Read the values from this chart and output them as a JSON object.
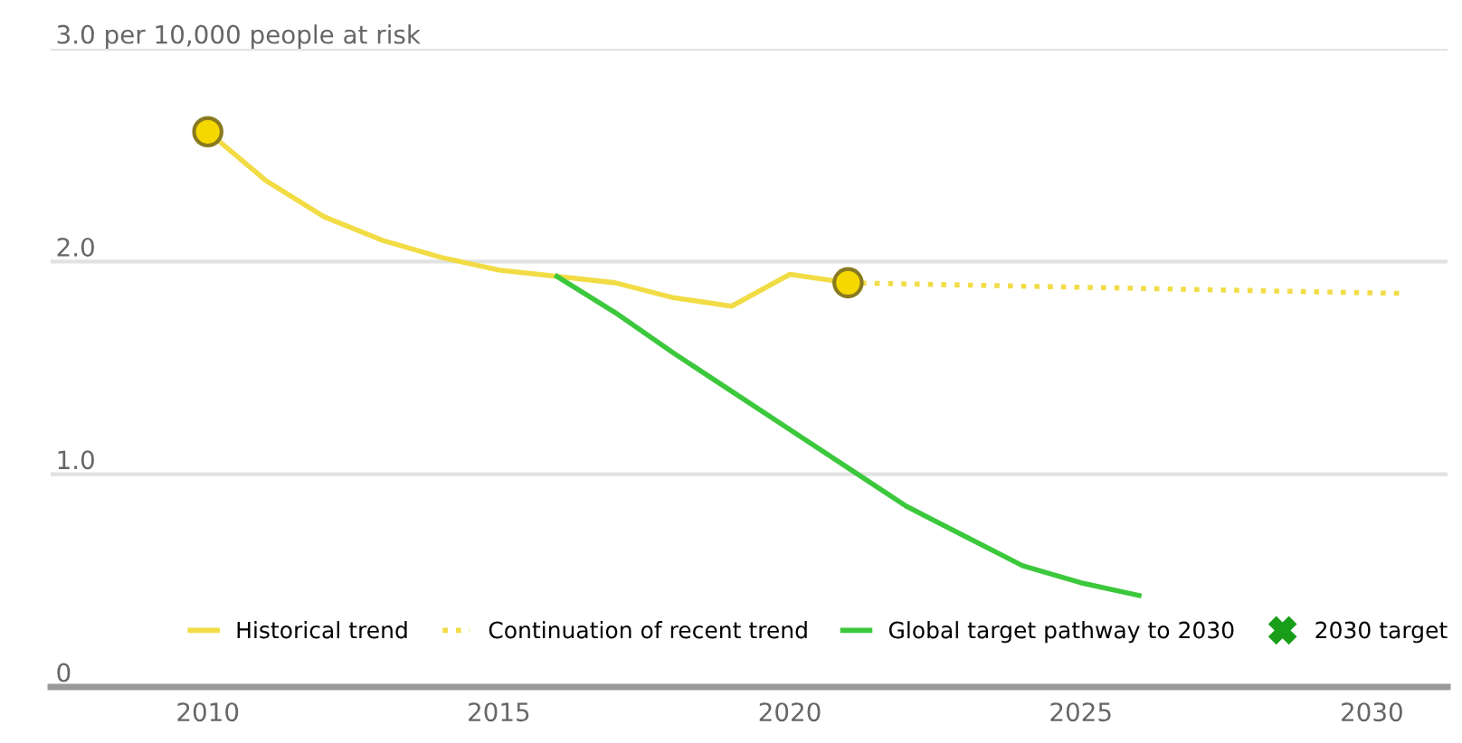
{
  "chart_data": {
    "type": "line",
    "x": [
      2010,
      2011,
      2012,
      2013,
      2014,
      2015,
      2016,
      2017,
      2018,
      2019,
      2020,
      2021
    ],
    "series": [
      {
        "name": "Historical trend",
        "color": "#f2dc46",
        "line_style": "solid",
        "values": [
          2.61,
          2.38,
          2.21,
          2.1,
          2.02,
          1.96,
          1.93,
          1.9,
          1.83,
          1.79,
          1.94,
          1.9
        ]
      },
      {
        "name": "Continuation of recent trend",
        "color": "#f2dc46",
        "line_style": "dotted",
        "x": [
          2021,
          2030.5
        ],
        "values": [
          1.9,
          1.85
        ]
      },
      {
        "name": "Global target pathway to 2030",
        "color": "#3cc83c",
        "line_style": "solid",
        "x": [
          2016,
          2017,
          2018,
          2019,
          2020,
          2021,
          2022,
          2023,
          2024,
          2025,
          2026
        ],
        "values": [
          1.93,
          1.76,
          1.57,
          1.39,
          1.21,
          1.03,
          0.85,
          0.71,
          0.57,
          0.49,
          0.43
        ]
      },
      {
        "type": "scatter",
        "color": "#f5d800",
        "marker": "circle",
        "x": [
          2010,
          2021
        ],
        "values": [
          2.61,
          1.9
        ]
      },
      {
        "name": "2030 target",
        "type": "scatter",
        "color": "#1a9e1a",
        "marker": "cross",
        "values": [
          null,
          null,
          null,
          null,
          null,
          null,
          null,
          null,
          null,
          null,
          null,
          null
        ]
      }
    ],
    "xlim": [
      2007.3,
      2031.3
    ],
    "xticks": [
      2010,
      2015,
      2020,
      2025,
      2030
    ],
    "ylim": [
      0,
      3
    ],
    "yticks": [
      {
        "value": 0,
        "label": "0"
      },
      {
        "value": 1,
        "label": "1.0"
      },
      {
        "value": 2,
        "label": "2.0"
      },
      {
        "value": 3,
        "label": "3.0 per 10,000 people at risk"
      }
    ],
    "grid": "y",
    "legend": "bottom"
  }
}
